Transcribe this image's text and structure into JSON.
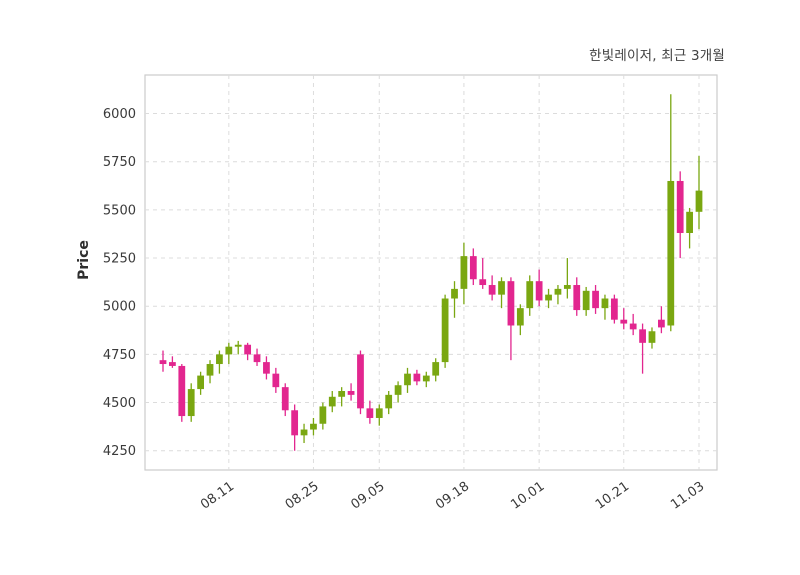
{
  "title": "한빛레이저, 최근 3개월",
  "colors": {
    "up": "#7aa711",
    "down": "#e2268f",
    "grid": "#dcdcdc",
    "panel_border": "#cccccc",
    "tick_text": "#3a3a3a",
    "background": "#ffffff"
  },
  "chart_data": {
    "type": "candlestick",
    "title": "한빛레이저, 최근 3개월",
    "xlabel": "",
    "ylabel": "Price",
    "ylim": [
      4150,
      6200
    ],
    "grid": "dashed",
    "legend": "none",
    "y_ticks": [
      4250,
      4500,
      4750,
      5000,
      5250,
      5500,
      5750,
      6000
    ],
    "x_ticks": [
      {
        "label": "08.11",
        "i": 7
      },
      {
        "label": "08.25",
        "i": 16
      },
      {
        "label": "09.05",
        "i": 23
      },
      {
        "label": "09.18",
        "i": 32
      },
      {
        "label": "10.01",
        "i": 40
      },
      {
        "label": "10.21",
        "i": 49
      },
      {
        "label": "11.03",
        "i": 57
      }
    ],
    "candles_format": [
      "open",
      "high",
      "low",
      "close"
    ],
    "candles": [
      [
        4720,
        4770,
        4660,
        4700
      ],
      [
        4710,
        4740,
        4680,
        4690
      ],
      [
        4690,
        4700,
        4400,
        4430
      ],
      [
        4430,
        4600,
        4400,
        4570
      ],
      [
        4570,
        4660,
        4540,
        4640
      ],
      [
        4640,
        4720,
        4600,
        4700
      ],
      [
        4700,
        4770,
        4650,
        4750
      ],
      [
        4750,
        4810,
        4700,
        4790
      ],
      [
        4790,
        4820,
        4750,
        4800
      ],
      [
        4800,
        4810,
        4720,
        4750
      ],
      [
        4750,
        4780,
        4690,
        4710
      ],
      [
        4710,
        4740,
        4620,
        4650
      ],
      [
        4650,
        4680,
        4550,
        4580
      ],
      [
        4580,
        4600,
        4430,
        4460
      ],
      [
        4460,
        4490,
        4250,
        4330
      ],
      [
        4330,
        4390,
        4290,
        4360
      ],
      [
        4360,
        4420,
        4330,
        4390
      ],
      [
        4390,
        4500,
        4360,
        4480
      ],
      [
        4480,
        4560,
        4450,
        4530
      ],
      [
        4530,
        4580,
        4480,
        4560
      ],
      [
        4560,
        4600,
        4510,
        4540
      ],
      [
        4750,
        4770,
        4440,
        4470
      ],
      [
        4470,
        4510,
        4390,
        4420
      ],
      [
        4420,
        4490,
        4380,
        4470
      ],
      [
        4470,
        4560,
        4440,
        4540
      ],
      [
        4540,
        4610,
        4500,
        4590
      ],
      [
        4590,
        4680,
        4550,
        4650
      ],
      [
        4650,
        4670,
        4590,
        4610
      ],
      [
        4610,
        4660,
        4580,
        4640
      ],
      [
        4640,
        4730,
        4610,
        4710
      ],
      [
        4710,
        5060,
        4680,
        5040
      ],
      [
        5040,
        5130,
        4940,
        5090
      ],
      [
        5090,
        5330,
        5010,
        5260
      ],
      [
        5260,
        5300,
        5110,
        5140
      ],
      [
        5140,
        5250,
        5090,
        5110
      ],
      [
        5110,
        5160,
        5030,
        5060
      ],
      [
        5060,
        5150,
        4990,
        5130
      ],
      [
        5130,
        5150,
        4720,
        4900
      ],
      [
        4900,
        5010,
        4850,
        4990
      ],
      [
        4990,
        5160,
        4950,
        5130
      ],
      [
        5130,
        5190,
        5000,
        5030
      ],
      [
        5030,
        5090,
        4990,
        5060
      ],
      [
        5060,
        5110,
        5010,
        5090
      ],
      [
        5090,
        5250,
        5040,
        5110
      ],
      [
        5110,
        5150,
        4950,
        4980
      ],
      [
        4980,
        5100,
        4950,
        5080
      ],
      [
        5080,
        5110,
        4960,
        4990
      ],
      [
        4990,
        5060,
        4930,
        5040
      ],
      [
        5040,
        5060,
        4910,
        4930
      ],
      [
        4930,
        4990,
        4880,
        4910
      ],
      [
        4910,
        4960,
        4850,
        4880
      ],
      [
        4880,
        4910,
        4650,
        4810
      ],
      [
        4810,
        4890,
        4780,
        4870
      ],
      [
        4930,
        5000,
        4860,
        4890
      ],
      [
        4900,
        6100,
        4870,
        5650
      ],
      [
        5650,
        5700,
        5250,
        5380
      ],
      [
        5380,
        5510,
        5300,
        5490
      ],
      [
        5490,
        5780,
        5400,
        5600
      ]
    ]
  }
}
